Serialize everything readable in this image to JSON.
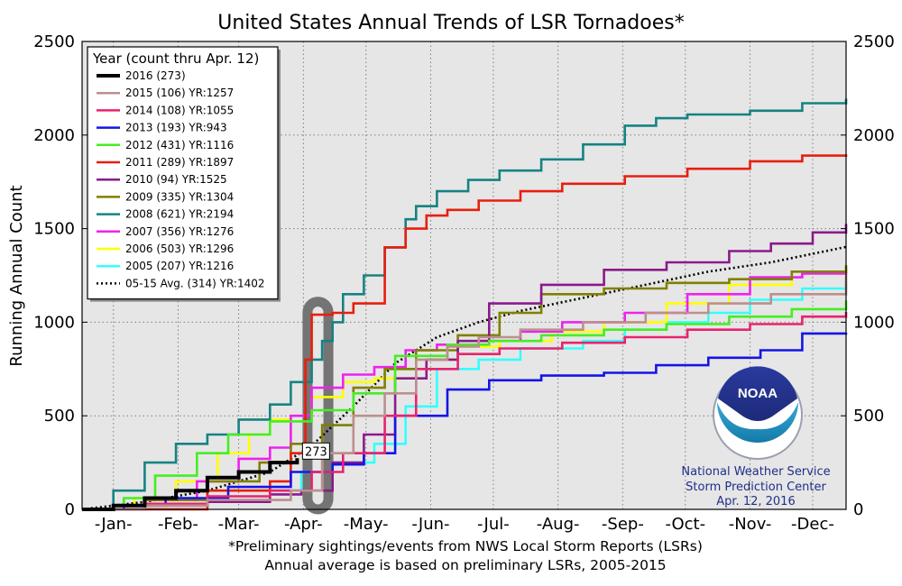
{
  "chart_data": {
    "type": "line",
    "title": "United States Annual Trends of LSR Tornadoes*",
    "ylabel": "Running Annual Count",
    "xlabel": "",
    "ylim": [
      0,
      2500
    ],
    "xlim": [
      0,
      366
    ],
    "y_ticks": [
      0,
      500,
      1000,
      1500,
      2000,
      2500
    ],
    "y_tick_labels": [
      "0",
      "500",
      "1000",
      "1500",
      "2000",
      "2500"
    ],
    "x_ticks": [
      {
        "label": "-Jan-",
        "day": 15
      },
      {
        "label": "-Feb-",
        "day": 46
      },
      {
        "label": "-Mar-",
        "day": 75
      },
      {
        "label": "-Apr-",
        "day": 106
      },
      {
        "label": "-May-",
        "day": 136
      },
      {
        "label": "-Jun-",
        "day": 167
      },
      {
        "label": "-Jul-",
        "day": 197
      },
      {
        "label": "-Aug-",
        "day": 228
      },
      {
        "label": "-Sep-",
        "day": 259
      },
      {
        "label": "-Oct-",
        "day": 289
      },
      {
        "label": "-Nov-",
        "day": 320
      },
      {
        "label": "-Dec-",
        "day": 350
      }
    ],
    "grid": true,
    "legend_title": "Year (count thru Apr. 12)",
    "legend_position": "top-left",
    "series": [
      {
        "name": "2016 (273)",
        "color": "#000000",
        "style": "thick",
        "x": [
          0,
          15,
          30,
          45,
          60,
          75,
          90,
          103
        ],
        "y": [
          0,
          20,
          60,
          100,
          170,
          200,
          250,
          273
        ]
      },
      {
        "name": "2015 (106) YR:1257",
        "color": "#bc8f8f",
        "style": "solid",
        "x": [
          0,
          30,
          60,
          100,
          115,
          130,
          145,
          160,
          175,
          190,
          210,
          240,
          270,
          300,
          330,
          366
        ],
        "y": [
          0,
          20,
          50,
          100,
          300,
          500,
          620,
          800,
          870,
          920,
          960,
          1000,
          1050,
          1100,
          1150,
          1257
        ]
      },
      {
        "name": "2014 (108) YR:1055",
        "color": "#e8236e",
        "style": "solid",
        "x": [
          0,
          30,
          60,
          90,
          110,
          125,
          145,
          160,
          180,
          200,
          230,
          260,
          290,
          320,
          345,
          366
        ],
        "y": [
          0,
          30,
          70,
          100,
          200,
          300,
          500,
          750,
          830,
          860,
          890,
          920,
          960,
          990,
          1030,
          1055
        ]
      },
      {
        "name": "2013 (193) YR:943",
        "color": "#1414e6",
        "style": "solid",
        "x": [
          0,
          20,
          40,
          70,
          100,
          120,
          135,
          150,
          175,
          195,
          220,
          250,
          275,
          300,
          325,
          345,
          366
        ],
        "y": [
          0,
          20,
          60,
          120,
          200,
          240,
          300,
          500,
          640,
          690,
          715,
          730,
          770,
          810,
          850,
          940,
          943
        ]
      },
      {
        "name": "2012 (431) YR:1116",
        "color": "#44ee22",
        "style": "solid",
        "x": [
          0,
          20,
          35,
          55,
          70,
          90,
          110,
          130,
          150,
          175,
          195,
          220,
          250,
          280,
          310,
          340,
          366
        ],
        "y": [
          0,
          60,
          180,
          300,
          400,
          470,
          530,
          620,
          820,
          880,
          900,
          930,
          960,
          990,
          1030,
          1070,
          1116
        ]
      },
      {
        "name": "2011 (289) YR:1897",
        "color": "#e81e0e",
        "style": "solid",
        "x": [
          0,
          30,
          60,
          90,
          100,
          107,
          110,
          120,
          130,
          145,
          155,
          165,
          175,
          190,
          210,
          230,
          260,
          290,
          320,
          345,
          366
        ],
        "y": [
          0,
          0,
          100,
          150,
          300,
          800,
          1040,
          1050,
          1100,
          1400,
          1500,
          1570,
          1600,
          1650,
          1700,
          1740,
          1780,
          1820,
          1860,
          1890,
          1897
        ]
      },
      {
        "name": "2010 (94) YR:1525",
        "color": "#8b1a8b",
        "style": "solid",
        "x": [
          0,
          30,
          60,
          90,
          105,
          120,
          135,
          150,
          165,
          180,
          195,
          220,
          250,
          280,
          310,
          330,
          350,
          366
        ],
        "y": [
          0,
          20,
          40,
          80,
          100,
          250,
          400,
          700,
          800,
          900,
          1100,
          1200,
          1280,
          1320,
          1380,
          1420,
          1480,
          1525
        ]
      },
      {
        "name": "2009 (335) YR:1304",
        "color": "#808000",
        "style": "solid",
        "x": [
          0,
          30,
          60,
          85,
          100,
          115,
          130,
          145,
          160,
          180,
          200,
          220,
          250,
          280,
          310,
          340,
          366
        ],
        "y": [
          0,
          50,
          150,
          250,
          350,
          450,
          650,
          750,
          850,
          930,
          1050,
          1150,
          1180,
          1210,
          1230,
          1270,
          1304
        ]
      },
      {
        "name": "2008 (621) YR:2194",
        "color": "#168282",
        "style": "solid",
        "x": [
          0,
          15,
          30,
          45,
          60,
          75,
          90,
          100,
          110,
          115,
          120,
          125,
          135,
          145,
          155,
          160,
          170,
          185,
          200,
          220,
          240,
          260,
          275,
          290,
          320,
          345,
          366
        ],
        "y": [
          0,
          100,
          250,
          350,
          400,
          480,
          560,
          680,
          800,
          900,
          1000,
          1150,
          1250,
          1400,
          1550,
          1620,
          1700,
          1760,
          1810,
          1870,
          1950,
          2050,
          2090,
          2110,
          2130,
          2170,
          2194
        ]
      },
      {
        "name": "2007 (356) YR:1276",
        "color": "#ee22ee",
        "style": "solid",
        "x": [
          0,
          30,
          55,
          75,
          90,
          100,
          110,
          125,
          140,
          155,
          170,
          190,
          210,
          230,
          260,
          290,
          320,
          345,
          366
        ],
        "y": [
          0,
          50,
          150,
          270,
          330,
          500,
          650,
          720,
          760,
          850,
          880,
          900,
          950,
          1000,
          1050,
          1150,
          1240,
          1260,
          1276
        ]
      },
      {
        "name": "2006 (503) YR:1296",
        "color": "#ffff00",
        "style": "solid",
        "x": [
          0,
          25,
          45,
          65,
          80,
          90,
          100,
          110,
          125,
          140,
          160,
          180,
          200,
          225,
          250,
          280,
          310,
          340,
          366
        ],
        "y": [
          0,
          60,
          150,
          300,
          400,
          480,
          500,
          600,
          680,
          700,
          800,
          870,
          900,
          950,
          1000,
          1100,
          1200,
          1270,
          1296
        ]
      },
      {
        "name": "2005 (207) YR:1216",
        "color": "#33ffff",
        "style": "solid",
        "x": [
          0,
          30,
          60,
          90,
          105,
          120,
          140,
          155,
          170,
          190,
          210,
          240,
          260,
          280,
          300,
          320,
          345,
          366
        ],
        "y": [
          0,
          20,
          50,
          100,
          200,
          250,
          350,
          550,
          750,
          800,
          860,
          900,
          960,
          1000,
          1050,
          1120,
          1180,
          1216
        ]
      },
      {
        "name": "05-15 Avg. (314) YR:1402",
        "color": "#000000",
        "style": "dotted",
        "x": [
          0,
          30,
          60,
          90,
          110,
          130,
          150,
          170,
          190,
          210,
          240,
          270,
          300,
          330,
          366
        ],
        "y": [
          0,
          40,
          100,
          200,
          340,
          550,
          780,
          920,
          1000,
          1060,
          1130,
          1200,
          1270,
          1320,
          1402
        ]
      }
    ],
    "annotations": [
      {
        "text": "273",
        "x": 103,
        "y": 273
      }
    ],
    "highlight": {
      "x_range": [
        108,
        118
      ],
      "y_range": [
        0,
        1110
      ],
      "color": "#6e6e6e"
    },
    "footnotes": [
      "*Preliminary sightings/events from NWS Local Storm Reports (LSRs)",
      "Annual average is based on preliminary LSRs, 2005-2015"
    ],
    "logo": {
      "text": "NOAA",
      "lines": [
        "National Weather Service",
        "Storm Prediction Center",
        "Apr. 12, 2016"
      ]
    },
    "colors": {
      "plot_background": "#e6e6e6",
      "grid": "#7f7f7f"
    }
  }
}
